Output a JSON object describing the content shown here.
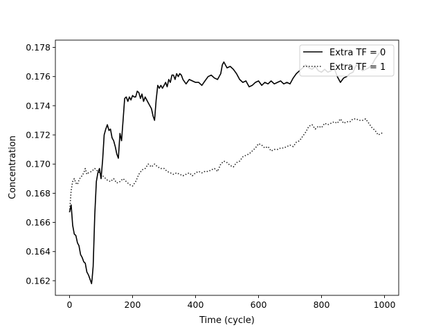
{
  "chart_data": {
    "type": "line",
    "title": "",
    "xlabel": "Time (cycle)",
    "ylabel": "Concentration",
    "xlim": [
      -45,
      1045
    ],
    "ylim": [
      0.161,
      0.1785
    ],
    "xticks": [
      0,
      200,
      400,
      600,
      800,
      1000
    ],
    "xtick_labels": [
      "0",
      "200",
      "400",
      "600",
      "800",
      "1000"
    ],
    "yticks": [
      0.162,
      0.164,
      0.166,
      0.168,
      0.17,
      0.172,
      0.174,
      0.176,
      0.178
    ],
    "ytick_labels": [
      "0.162",
      "0.164",
      "0.166",
      "0.168",
      "0.170",
      "0.172",
      "0.174",
      "0.176",
      "0.178"
    ],
    "grid": false,
    "legend_position": "top-right",
    "series": [
      {
        "name": "Extra TF = 0",
        "style": "solid",
        "color": "#000000",
        "x": [
          0,
          5,
          10,
          15,
          20,
          25,
          30,
          35,
          40,
          45,
          50,
          55,
          60,
          65,
          70,
          72,
          75,
          80,
          85,
          90,
          95,
          100,
          105,
          110,
          115,
          120,
          125,
          130,
          135,
          140,
          145,
          150,
          155,
          160,
          165,
          170,
          175,
          180,
          185,
          190,
          195,
          200,
          205,
          210,
          215,
          220,
          225,
          230,
          235,
          240,
          245,
          250,
          255,
          260,
          265,
          270,
          275,
          280,
          285,
          290,
          295,
          300,
          305,
          310,
          315,
          320,
          325,
          330,
          335,
          340,
          345,
          350,
          355,
          360,
          370,
          380,
          390,
          400,
          410,
          420,
          430,
          440,
          450,
          460,
          470,
          480,
          485,
          490,
          500,
          510,
          520,
          530,
          540,
          550,
          560,
          570,
          580,
          590,
          600,
          610,
          620,
          630,
          640,
          650,
          660,
          670,
          680,
          690,
          700,
          710,
          720,
          730,
          740,
          750,
          760,
          770,
          780,
          790,
          800,
          810,
          820,
          830,
          840,
          850,
          860,
          870,
          880,
          890,
          900,
          910,
          920,
          930,
          940,
          950,
          960,
          970,
          980,
          990,
          995
        ],
        "y": [
          0.1667,
          0.1672,
          0.1658,
          0.1652,
          0.1651,
          0.1646,
          0.1644,
          0.1638,
          0.1636,
          0.1633,
          0.1632,
          0.1626,
          0.1624,
          0.1621,
          0.1618,
          0.1622,
          0.163,
          0.1665,
          0.1688,
          0.1694,
          0.1697,
          0.169,
          0.1703,
          0.172,
          0.1724,
          0.1727,
          0.1723,
          0.1724,
          0.1718,
          0.1716,
          0.1712,
          0.1707,
          0.1704,
          0.1721,
          0.1716,
          0.173,
          0.1745,
          0.1746,
          0.1743,
          0.1746,
          0.1744,
          0.1747,
          0.1746,
          0.1746,
          0.175,
          0.1749,
          0.1745,
          0.1748,
          0.1743,
          0.1746,
          0.1744,
          0.1742,
          0.174,
          0.1738,
          0.1733,
          0.173,
          0.1744,
          0.1754,
          0.1752,
          0.1754,
          0.1752,
          0.1754,
          0.1756,
          0.1753,
          0.1758,
          0.1756,
          0.1761,
          0.1761,
          0.1758,
          0.1762,
          0.176,
          0.1762,
          0.1761,
          0.1758,
          0.1755,
          0.1758,
          0.1757,
          0.1756,
          0.1756,
          0.1754,
          0.1757,
          0.176,
          0.1761,
          0.1759,
          0.1758,
          0.1762,
          0.1768,
          0.177,
          0.1766,
          0.1767,
          0.1765,
          0.1762,
          0.1758,
          0.1756,
          0.1757,
          0.1753,
          0.1754,
          0.1756,
          0.1757,
          0.1754,
          0.1756,
          0.1755,
          0.1757,
          0.1755,
          0.1756,
          0.1757,
          0.1755,
          0.1756,
          0.1755,
          0.1759,
          0.1762,
          0.1764,
          0.1766,
          0.1768,
          0.1766,
          0.1765,
          0.1767,
          0.1764,
          0.1763,
          0.1765,
          0.1763,
          0.1764,
          0.1766,
          0.176,
          0.1756,
          0.1759,
          0.176,
          0.1762,
          0.1763,
          0.1768,
          0.1766,
          0.1764,
          0.1765,
          0.1766,
          0.1768,
          0.1772,
          0.1775,
          0.1778,
          0.1779
        ]
      },
      {
        "name": "Extra TF = 1",
        "style": "dotted",
        "color": "#222222",
        "x": [
          0,
          5,
          10,
          15,
          20,
          25,
          30,
          35,
          40,
          45,
          50,
          55,
          60,
          70,
          80,
          90,
          100,
          110,
          120,
          130,
          140,
          150,
          160,
          170,
          180,
          190,
          200,
          210,
          220,
          230,
          240,
          250,
          260,
          270,
          280,
          290,
          300,
          310,
          320,
          330,
          340,
          350,
          360,
          370,
          380,
          390,
          400,
          410,
          420,
          430,
          440,
          450,
          460,
          470,
          480,
          490,
          500,
          510,
          520,
          530,
          540,
          550,
          560,
          570,
          580,
          590,
          600,
          610,
          620,
          630,
          640,
          650,
          660,
          670,
          680,
          690,
          700,
          710,
          720,
          730,
          740,
          750,
          760,
          770,
          780,
          790,
          800,
          810,
          820,
          830,
          840,
          850,
          860,
          870,
          880,
          890,
          900,
          910,
          920,
          930,
          940,
          950,
          960,
          970,
          980,
          990,
          995
        ],
        "y": [
          0.1667,
          0.1682,
          0.1688,
          0.169,
          0.1687,
          0.1686,
          0.1689,
          0.1691,
          0.1692,
          0.1694,
          0.1697,
          0.1693,
          0.1694,
          0.1695,
          0.1697,
          0.1695,
          0.1693,
          0.1691,
          0.1689,
          0.1688,
          0.169,
          0.1687,
          0.1688,
          0.169,
          0.1688,
          0.1686,
          0.1685,
          0.1688,
          0.1693,
          0.1696,
          0.1697,
          0.17,
          0.1698,
          0.17,
          0.1698,
          0.1697,
          0.1697,
          0.1695,
          0.1694,
          0.1693,
          0.1694,
          0.1693,
          0.1692,
          0.1693,
          0.1694,
          0.1692,
          0.1694,
          0.1695,
          0.1694,
          0.1695,
          0.1695,
          0.1696,
          0.1697,
          0.1695,
          0.17,
          0.1702,
          0.1701,
          0.1699,
          0.1698,
          0.1701,
          0.1702,
          0.1705,
          0.1706,
          0.1707,
          0.1709,
          0.1711,
          0.1714,
          0.1713,
          0.1711,
          0.1712,
          0.1709,
          0.171,
          0.171,
          0.1711,
          0.1711,
          0.1712,
          0.1713,
          0.1712,
          0.1715,
          0.1716,
          0.1719,
          0.1722,
          0.1726,
          0.1727,
          0.1724,
          0.1726,
          0.1725,
          0.1728,
          0.1727,
          0.1728,
          0.1729,
          0.1728,
          0.1731,
          0.1728,
          0.1729,
          0.1729,
          0.1731,
          0.1731,
          0.173,
          0.173,
          0.1731,
          0.1728,
          0.1725,
          0.1723,
          0.172,
          0.1721,
          0.1722
        ]
      }
    ]
  }
}
